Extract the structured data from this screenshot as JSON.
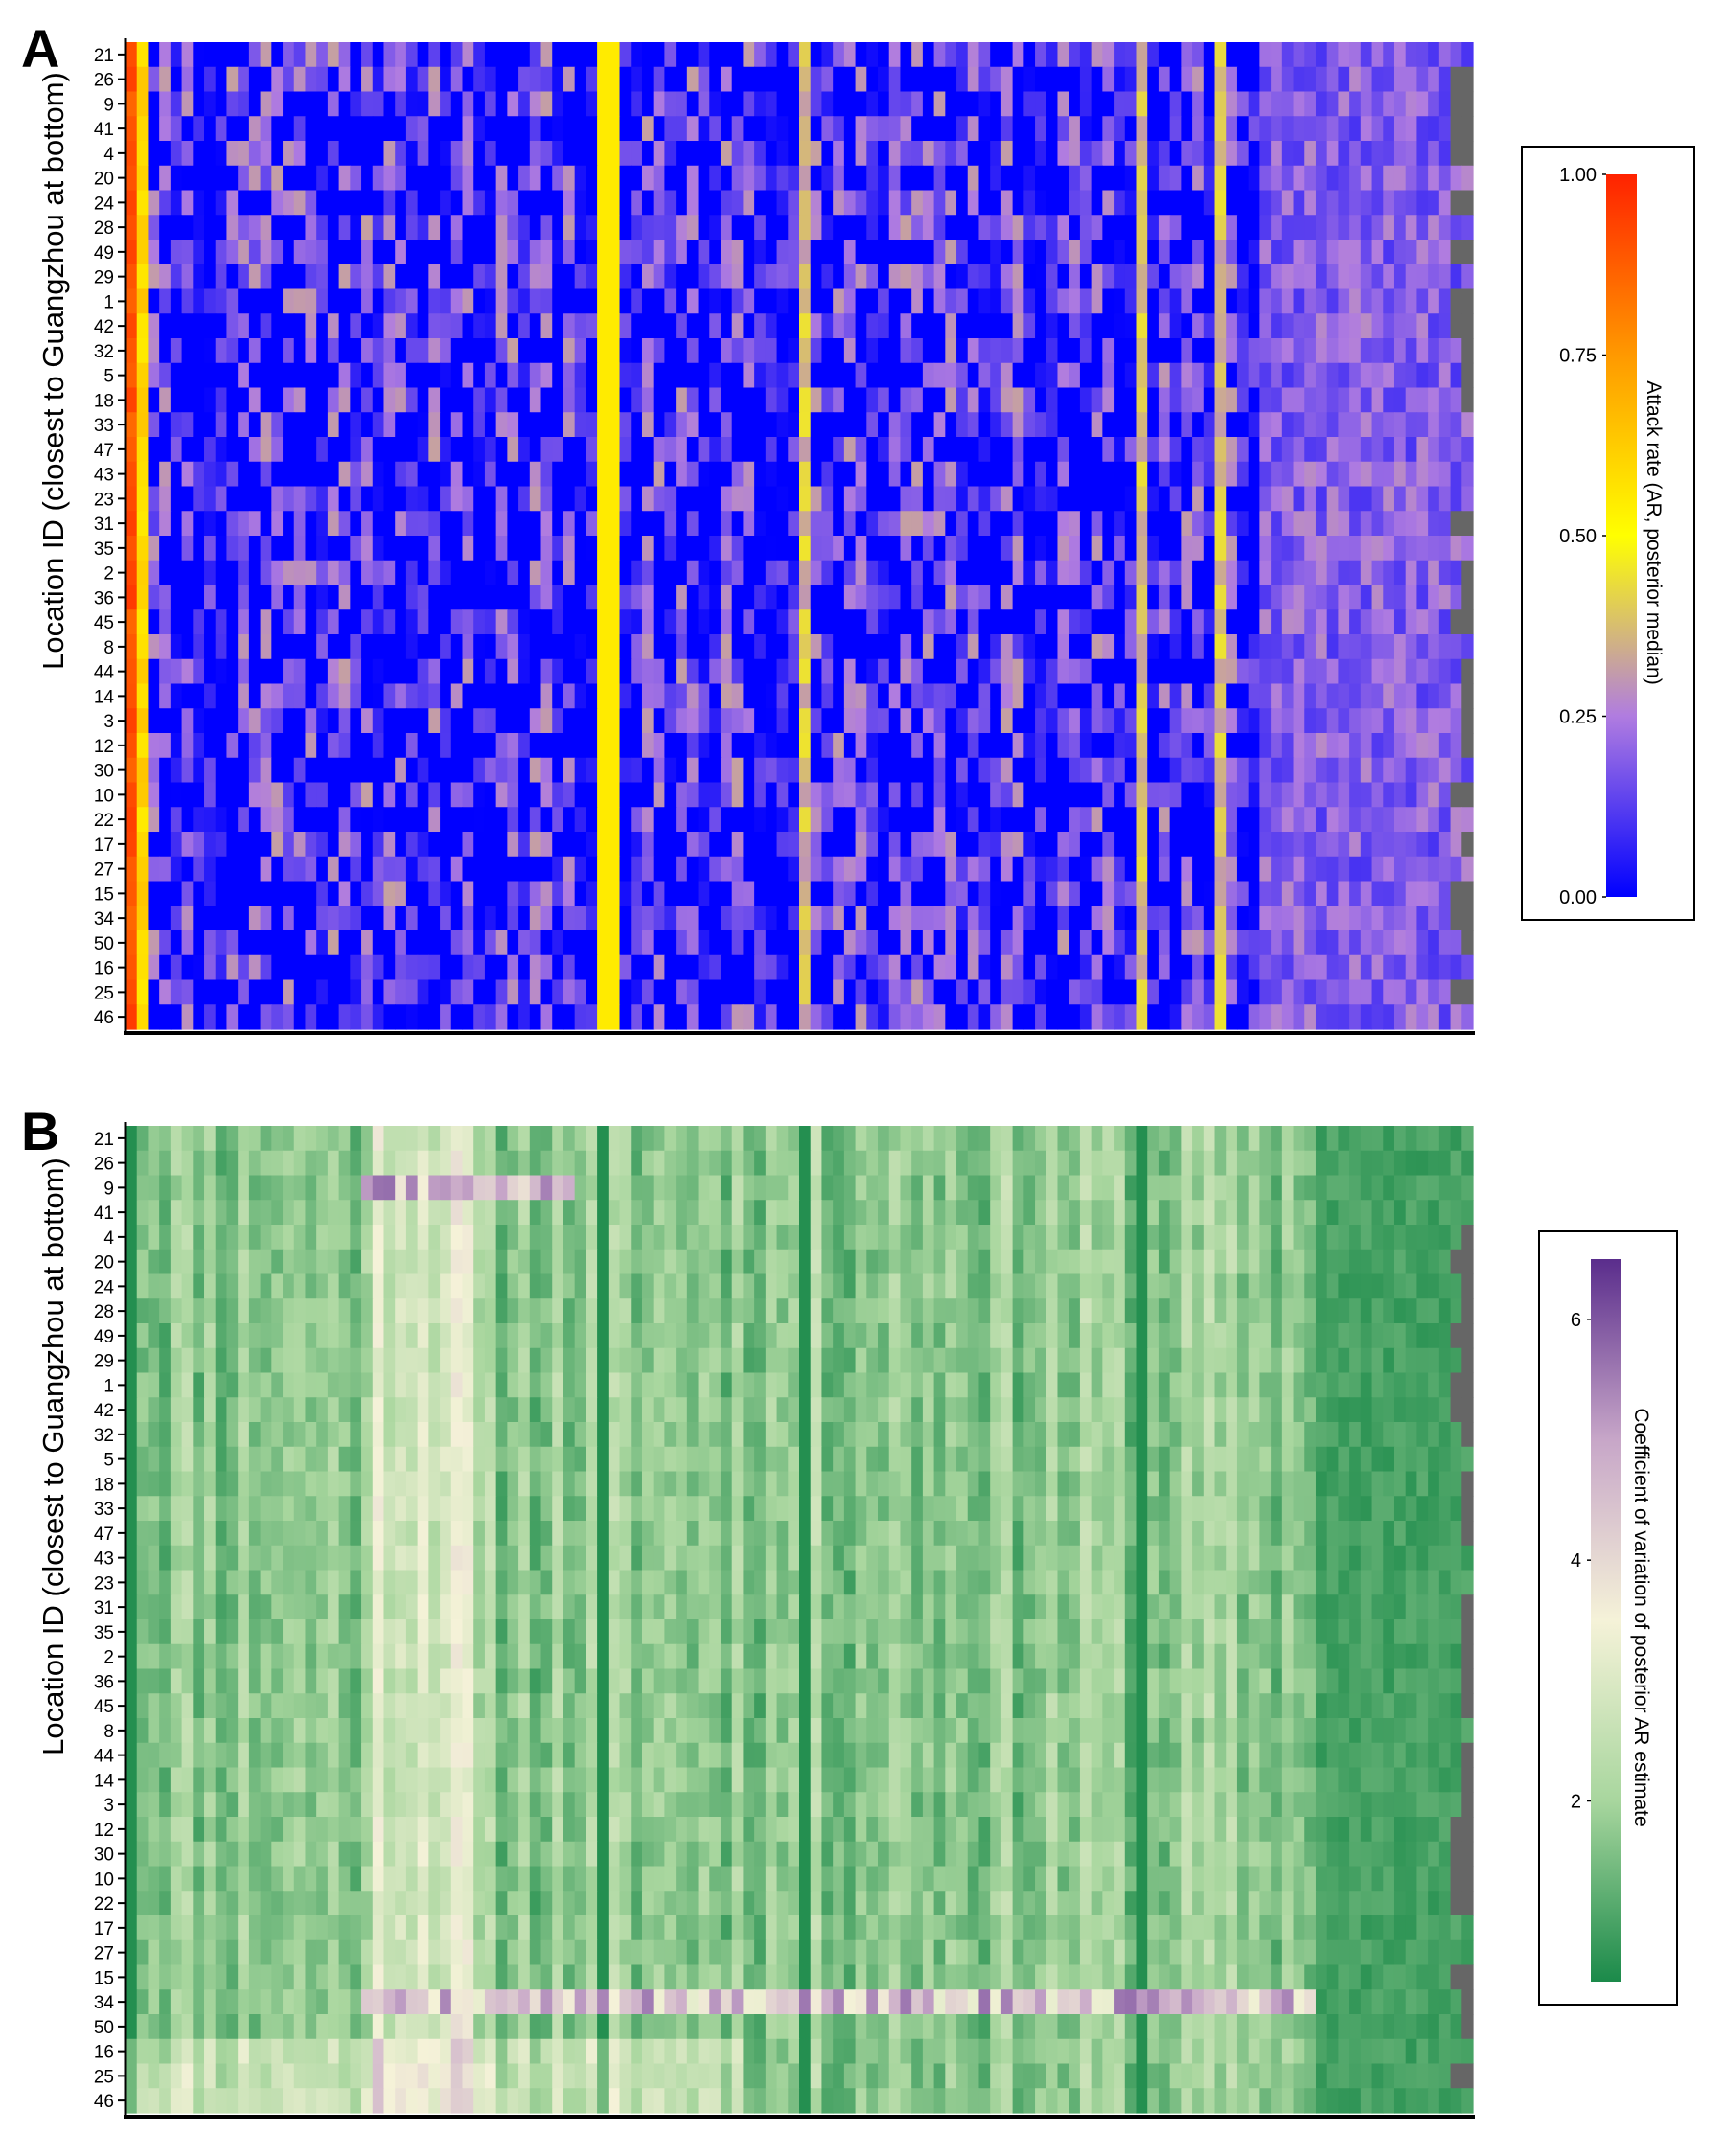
{
  "panels": {
    "a": {
      "letter": "A",
      "ylabel": "Location ID (closest to Guangzhou at bottom)"
    },
    "b": {
      "letter": "B",
      "ylabel": "Location ID (closest to Guangzhou at bottom)"
    }
  },
  "legends": {
    "a": {
      "title": "Attack rate (AR, posterior median)",
      "ticks": [
        "0.00",
        "0.25",
        "0.50",
        "0.75",
        "1.00"
      ],
      "colors": [
        "#0000ff",
        "#b07ce0",
        "#ffff00",
        "#ff9900",
        "#ff2200"
      ]
    },
    "b": {
      "title": "Coefficient of variation of posterior AR estimate",
      "ticks": [
        "2",
        "4",
        "6"
      ],
      "colors": [
        "#1b8a4a",
        "#a8d69e",
        "#f5f2d8",
        "#c7a6c8",
        "#5a2d8c"
      ]
    }
  },
  "chart_data": [
    {
      "type": "heatmap",
      "ylabel": "Location ID (closest to Guangzhou at bottom)",
      "rows": [
        "21",
        "26",
        "9",
        "41",
        "4",
        "20",
        "24",
        "28",
        "49",
        "29",
        "1",
        "42",
        "32",
        "5",
        "18",
        "33",
        "47",
        "43",
        "23",
        "31",
        "35",
        "2",
        "36",
        "45",
        "8",
        "44",
        "14",
        "3",
        "12",
        "30",
        "10",
        "22",
        "17",
        "27",
        "15",
        "34",
        "50",
        "16",
        "25",
        "46"
      ],
      "value_range": [
        0,
        1
      ],
      "colorbar_ticks": [
        0,
        0.25,
        0.5,
        0.75,
        1
      ],
      "missing_color": "#666666"
    },
    {
      "type": "heatmap",
      "ylabel": "Location ID (closest to Guangzhou at bottom)",
      "rows": [
        "21",
        "26",
        "9",
        "41",
        "4",
        "20",
        "24",
        "28",
        "49",
        "29",
        "1",
        "42",
        "32",
        "5",
        "18",
        "33",
        "47",
        "43",
        "23",
        "31",
        "35",
        "2",
        "36",
        "45",
        "8",
        "44",
        "14",
        "3",
        "12",
        "30",
        "10",
        "22",
        "17",
        "27",
        "15",
        "34",
        "50",
        "16",
        "25",
        "46"
      ],
      "value_range": [
        0,
        6.5
      ],
      "colorbar_ticks": [
        2,
        4,
        6
      ],
      "missing_color": "#666666"
    }
  ]
}
